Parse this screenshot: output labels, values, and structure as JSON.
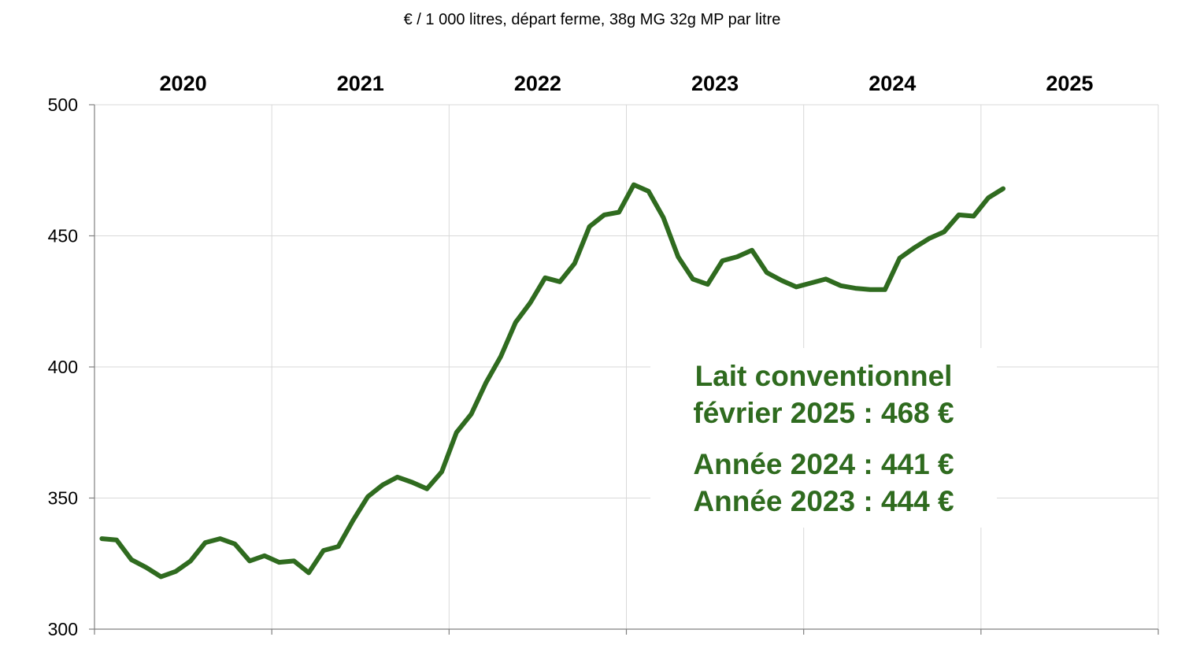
{
  "chart_data": {
    "type": "line",
    "subtitle": "€ / 1 000 litres, départ ferme, 38g MG 32g MP par litre",
    "xlabel": "",
    "ylabel": "",
    "year_labels": [
      "2020",
      "2021",
      "2022",
      "2023",
      "2024",
      "2025"
    ],
    "yticks": [
      300,
      350,
      400,
      450,
      500
    ],
    "ylim": [
      300,
      500
    ],
    "xlim": [
      -0.5,
      71.5
    ],
    "grid": true,
    "legend": "none",
    "series": [
      {
        "color": "#2f6b1f",
        "x": [
          0,
          1,
          2,
          3,
          4,
          5,
          6,
          7,
          8,
          9,
          10,
          11,
          12,
          13,
          14,
          15,
          16,
          17,
          18,
          19,
          20,
          21,
          22,
          23,
          24,
          25,
          26,
          27,
          28,
          29,
          30,
          31,
          32,
          33,
          34,
          35,
          36,
          37,
          38,
          39,
          40,
          41,
          42,
          43,
          44,
          45,
          46,
          47,
          48,
          49,
          50,
          51,
          52,
          53,
          54,
          55,
          56,
          57,
          58,
          59,
          60,
          61
        ],
        "values": [
          334.5,
          334,
          326.5,
          323.5,
          320,
          322,
          326,
          333,
          334.5,
          332.5,
          326,
          328,
          325.5,
          326,
          321.5,
          330,
          331.5,
          341.5,
          350.5,
          355,
          358,
          356,
          353.5,
          360,
          375,
          382,
          394,
          404,
          417,
          424.5,
          434,
          432.5,
          439.5,
          453.5,
          458,
          459,
          469.5,
          467,
          457,
          442,
          433.5,
          431.5,
          440.5,
          442,
          444.5,
          436,
          433,
          430.5,
          432,
          433.5,
          431,
          430,
          429.5,
          429.5,
          441.5,
          445.5,
          449,
          451.5,
          458,
          457.5,
          464.5,
          468
        ]
      }
    ],
    "annotation": {
      "lines": [
        "Lait conventionnel",
        "février 2025 : 468 €",
        "Année 2024 : 441 €",
        "Année 2023 : 444 €"
      ],
      "color": "#2f6b1f"
    }
  }
}
